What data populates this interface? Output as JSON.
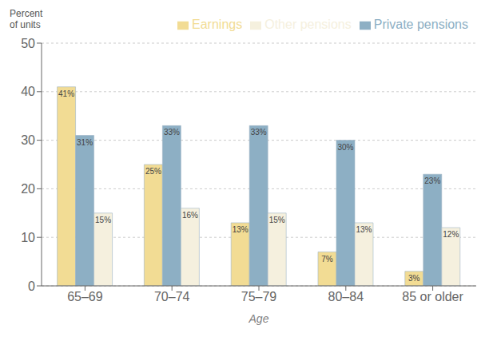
{
  "chart_data": {
    "type": "bar",
    "xlabel": "Age",
    "ylabel": "Percent\nof units",
    "categories": [
      "65–69",
      "70–74",
      "75–79",
      "80–84",
      "85 or older"
    ],
    "series": [
      {
        "name": "Earnings",
        "color": "#f2dc94",
        "values": [
          41,
          25,
          13,
          7,
          3
        ],
        "value_labels": [
          "41%",
          "25%",
          "13%",
          "7%",
          "3%"
        ]
      },
      {
        "name": "Private pensions",
        "color": "#8dafc4",
        "values": [
          31,
          33,
          33,
          30,
          23
        ],
        "value_labels": [
          "31%",
          "33%",
          "33%",
          "30%",
          "23%"
        ]
      },
      {
        "name": "Other pensions",
        "color": "#f5f0de",
        "values": [
          15,
          16,
          15,
          13,
          12
        ],
        "value_labels": [
          "15%",
          "16%",
          "15%",
          "13%",
          "12%"
        ]
      }
    ],
    "ylim": [
      0,
      50
    ],
    "yticks": [
      0,
      10,
      20,
      30,
      40,
      50
    ],
    "grid": true,
    "legend": "top",
    "data_labels": true
  }
}
